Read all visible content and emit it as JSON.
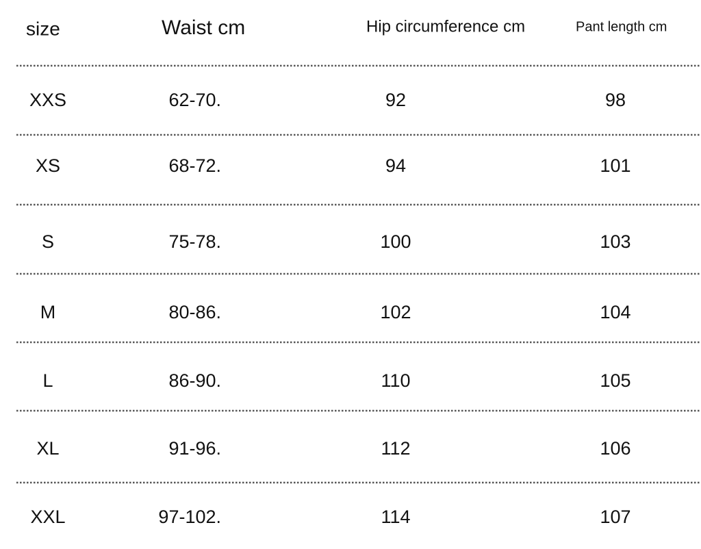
{
  "table": {
    "header": [
      "size",
      "Waist cm",
      "Hip circumference cm",
      "Pant length cm"
    ],
    "rows": [
      [
        "XXS",
        "62-70.",
        "92",
        "98"
      ],
      [
        "XS",
        "68-72.",
        "94",
        "101"
      ],
      [
        "S",
        "75-78.",
        "100",
        "103"
      ],
      [
        "M",
        "80-86.",
        "102",
        "104"
      ],
      [
        "L",
        "86-90.",
        "110",
        "105"
      ],
      [
        "XL",
        "91-96.",
        "112",
        "106"
      ],
      [
        "XXL",
        "97-102.",
        "114",
        "107"
      ]
    ]
  }
}
